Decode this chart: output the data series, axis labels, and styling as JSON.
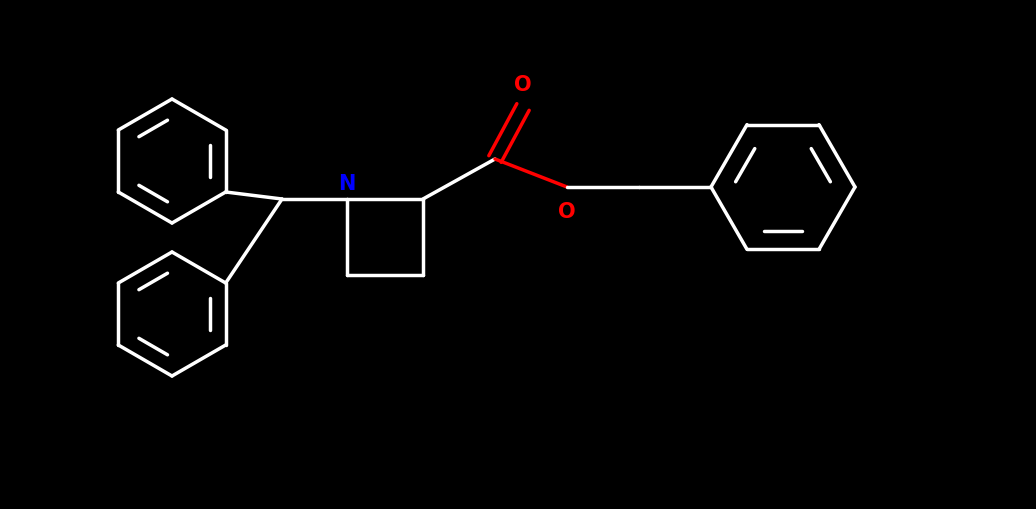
{
  "background_color": "#000000",
  "white": "#ffffff",
  "N_color": "#0000ff",
  "O_color": "#ff0000",
  "line_width": 2.5,
  "fig_width": 10.36,
  "fig_height": 5.09,
  "dpi": 100,
  "xlim": [
    0,
    10.36
  ],
  "ylim": [
    0,
    5.09
  ]
}
